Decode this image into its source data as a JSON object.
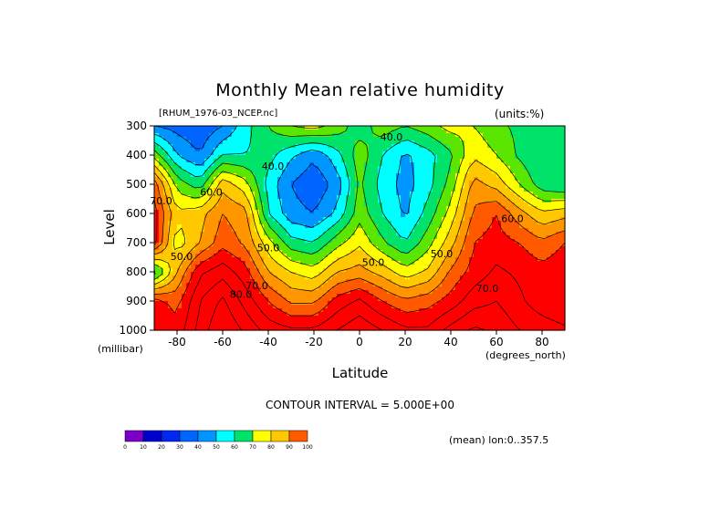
{
  "page": {
    "title": "Monthly Mean relative humidity",
    "source": "[RHUM_1976-03_NCEP.nc]",
    "units": "(units:%)",
    "contour_interval": "CONTOUR INTERVAL = 5.000E+00",
    "mean_lon": "(mean) lon:0..357.5"
  },
  "colors": {
    "palette": [
      "#7a00c8",
      "#0000cd",
      "#0028f0",
      "#0064ff",
      "#0096ff",
      "#00ffff",
      "#00e36b",
      "#5ae600",
      "#ffff00",
      "#ffc800",
      "#ff9600",
      "#ff5a00",
      "#ff0000"
    ]
  },
  "chart_data": {
    "type": "contour",
    "title": "Monthly Mean relative humidity",
    "xlabel": "Latitude",
    "x_unit": "(degrees_north)",
    "ylabel": "Level",
    "y_unit": "(millibar)",
    "xlim": [
      -90,
      90
    ],
    "ylim": [
      300,
      1000
    ],
    "y_inverted": true,
    "x_ticks": [
      -80,
      -60,
      -40,
      -20,
      0,
      20,
      40,
      60,
      80
    ],
    "y_ticks": [
      300,
      400,
      500,
      600,
      700,
      800,
      900,
      1000
    ],
    "contour_interval": 5,
    "contour_labels": [
      {
        "text": "40.0",
        "lat": 14,
        "lev": 340
      },
      {
        "text": "40.0",
        "lat": -38,
        "lev": 440
      },
      {
        "text": "70.0",
        "lat": -87,
        "lev": 560
      },
      {
        "text": "60.0",
        "lat": -65,
        "lev": 530
      },
      {
        "text": "60.0",
        "lat": 67,
        "lev": 620
      },
      {
        "text": "50.0",
        "lat": -78,
        "lev": 750
      },
      {
        "text": "50.0",
        "lat": -40,
        "lev": 720
      },
      {
        "text": "50.0",
        "lat": 6,
        "lev": 770
      },
      {
        "text": "50.0",
        "lat": 36,
        "lev": 740
      },
      {
        "text": "70.0",
        "lat": -45,
        "lev": 850
      },
      {
        "text": "80.0",
        "lat": -52,
        "lev": 880
      },
      {
        "text": "70.0",
        "lat": 56,
        "lev": 860
      }
    ],
    "colorbar": {
      "levels": [
        0,
        10,
        20,
        30,
        40,
        50,
        60,
        70,
        80,
        90,
        100
      ]
    },
    "lat_grid": [
      -90,
      -80,
      -70,
      -60,
      -50,
      -40,
      -30,
      -20,
      -10,
      0,
      10,
      20,
      30,
      40,
      50,
      60,
      70,
      80,
      90
    ],
    "levels": [
      300,
      400,
      500,
      600,
      700,
      800,
      900,
      1000
    ],
    "values": [
      [
        30,
        28,
        26,
        30,
        38,
        45,
        50,
        52,
        48,
        42,
        48,
        45,
        48,
        52,
        50,
        46,
        44,
        40,
        42
      ],
      [
        48,
        35,
        30,
        40,
        40,
        42,
        36,
        31,
        38,
        48,
        40,
        34,
        38,
        44,
        54,
        50,
        44,
        40,
        40
      ],
      [
        68,
        48,
        42,
        58,
        52,
        38,
        30,
        26,
        32,
        46,
        38,
        33,
        38,
        47,
        62,
        58,
        50,
        42,
        40
      ],
      [
        72,
        56,
        58,
        65,
        62,
        40,
        32,
        30,
        36,
        48,
        40,
        34,
        42,
        52,
        66,
        70,
        62,
        56,
        58
      ],
      [
        72,
        52,
        60,
        68,
        64,
        52,
        42,
        40,
        48,
        54,
        46,
        40,
        48,
        58,
        70,
        72,
        70,
        66,
        70
      ],
      [
        42,
        60,
        74,
        78,
        72,
        60,
        55,
        52,
        60,
        62,
        58,
        52,
        56,
        66,
        72,
        76,
        74,
        72,
        74
      ],
      [
        72,
        68,
        80,
        86,
        78,
        70,
        64,
        64,
        72,
        76,
        70,
        66,
        68,
        72,
        78,
        80,
        76,
        72,
        70
      ],
      [
        75,
        72,
        82,
        90,
        84,
        78,
        76,
        76,
        80,
        84,
        80,
        76,
        76,
        82,
        86,
        84,
        80,
        78,
        76
      ]
    ]
  }
}
